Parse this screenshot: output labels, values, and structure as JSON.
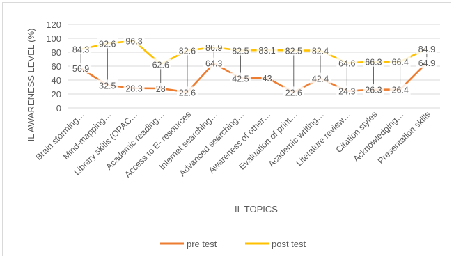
{
  "chart_data": {
    "type": "line",
    "xlabel": "IL TOPICS",
    "ylabel": "IL AWARENESS LEVEL (%)",
    "ylim": [
      0,
      120
    ],
    "yticks": [
      0,
      20,
      40,
      60,
      80,
      100,
      120
    ],
    "categories": [
      "Brain storming…",
      "Mind-mapping…",
      "Library skills (OPAC…",
      "Academic reading…",
      "Access to E- resources",
      "Internet searching…",
      "Advanced searching…",
      "Awareness of other…",
      "Evaluation of print…",
      "Academic writing…",
      "Literature review…",
      "Citation styles",
      "Acknowledging…",
      "Presentation skills"
    ],
    "series": [
      {
        "name": "pre test",
        "color": "#ed7d31",
        "values": [
          56.9,
          32.5,
          28.3,
          28,
          22.6,
          64.3,
          42.5,
          43,
          22.6,
          42.4,
          24.3,
          26.3,
          26.4,
          64.9
        ],
        "labels": [
          "56.9",
          "32.5",
          "28.3",
          "28",
          "22.6",
          "64.3",
          "42.5",
          "43",
          "22.6",
          "42.4",
          "24.3",
          "26.3",
          "26.4",
          "64.9"
        ]
      },
      {
        "name": "post test",
        "color": "#ffc000",
        "values": [
          84.3,
          92.6,
          96.3,
          62.6,
          82.6,
          86.9,
          82.5,
          83.1,
          82.5,
          82.4,
          64.6,
          66.3,
          66.4,
          84.9
        ],
        "labels": [
          "84.3",
          "92.6",
          "96.3",
          "62.6",
          "82.6",
          "86.9",
          "82.5",
          "83.1",
          "82.5",
          "82.4",
          "64.6",
          "66.3",
          "66.4",
          "84.9"
        ]
      }
    ],
    "grid": true,
    "high_low_lines": true,
    "legend": "bottom"
  }
}
